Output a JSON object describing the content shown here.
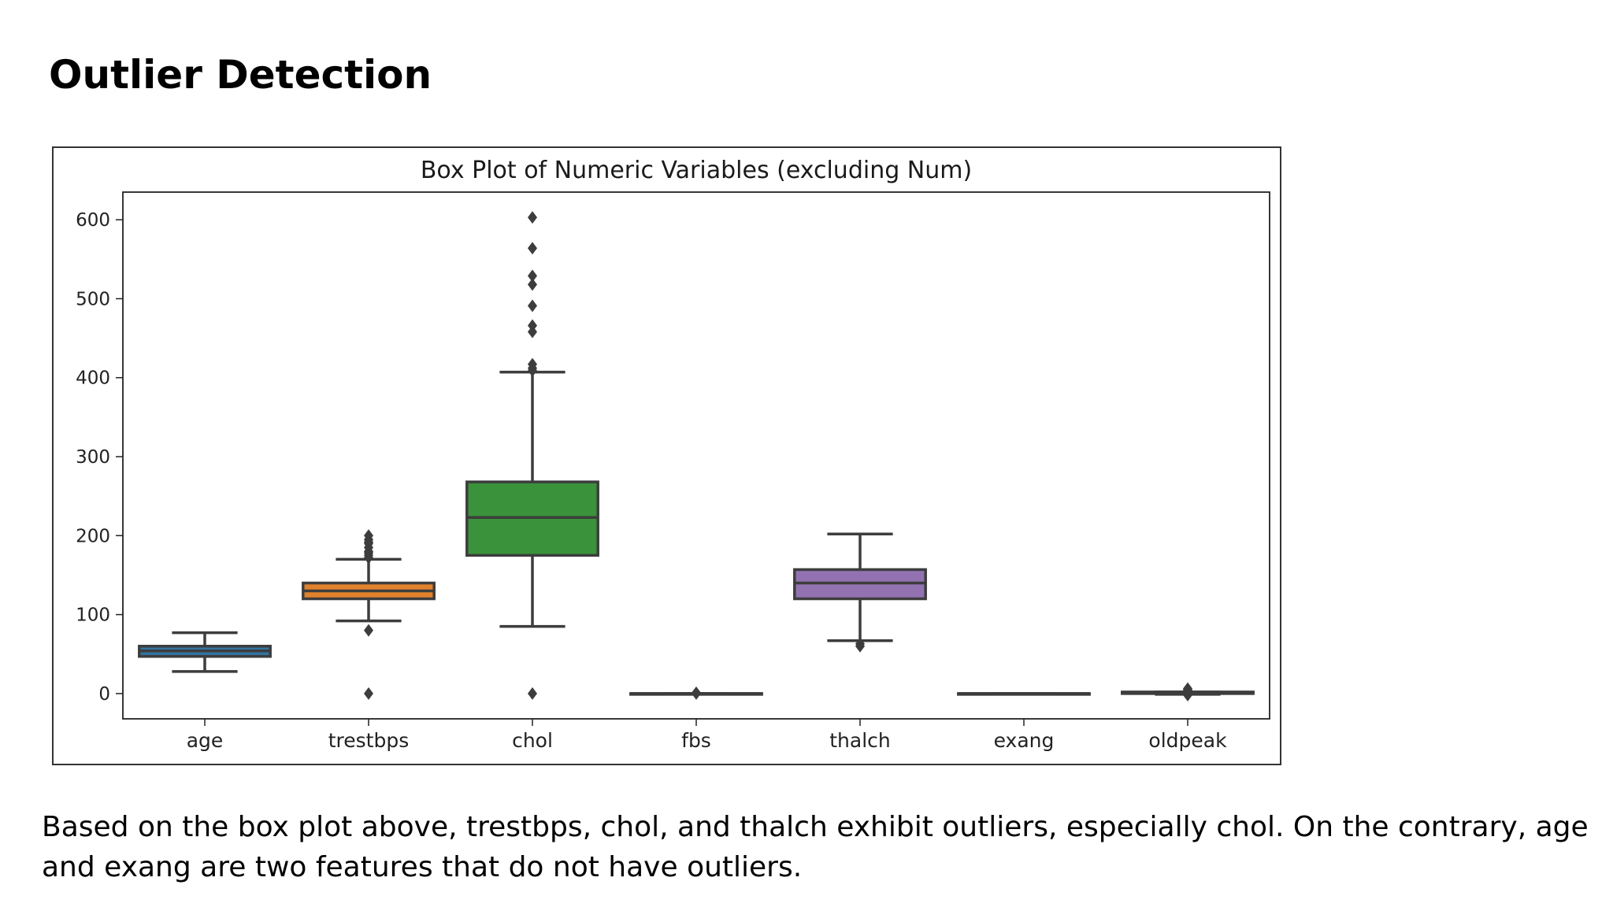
{
  "slide": {
    "title": "Outlier Detection",
    "description": "Based on the box plot above, trestbps, chol, and thalch exhibit outliers, especially chol. On the contrary, age and exang are two features that do not have outliers."
  },
  "chart_data": {
    "type": "box",
    "title": "Box Plot of Numeric Variables (excluding Num)",
    "xlabel": "",
    "ylabel": "",
    "ylim": [
      -32,
      635
    ],
    "yticks": [
      0,
      100,
      200,
      300,
      400,
      500,
      600
    ],
    "grid": false,
    "series": [
      {
        "name": "age",
        "color": "#3274a1",
        "whisker_low": 28,
        "q1": 47,
        "median": 54,
        "q3": 60,
        "whisker_high": 77,
        "outliers": []
      },
      {
        "name": "trestbps",
        "color": "#e1812c",
        "whisker_low": 92,
        "q1": 120,
        "median": 130,
        "q3": 140,
        "whisker_high": 170,
        "outliers": [
          0,
          80,
          172,
          175,
          178,
          180,
          185,
          190,
          192,
          195,
          200
        ]
      },
      {
        "name": "chol",
        "color": "#3a923a",
        "whisker_low": 85,
        "q1": 175,
        "median": 223,
        "q3": 268,
        "whisker_high": 407,
        "outliers": [
          0,
          409,
          412,
          417,
          458,
          466,
          491,
          518,
          529,
          564,
          603
        ]
      },
      {
        "name": "fbs",
        "color": "#c03d3e",
        "whisker_low": 0,
        "q1": 0,
        "median": 0,
        "q3": 0,
        "whisker_high": 0,
        "outliers": [
          0,
          1
        ]
      },
      {
        "name": "thalch",
        "color": "#9372b2",
        "whisker_low": 67,
        "q1": 120,
        "median": 140,
        "q3": 157,
        "whisker_high": 202,
        "outliers": [
          60,
          63
        ]
      },
      {
        "name": "exang",
        "color": "#845b53",
        "whisker_low": 0,
        "q1": 0,
        "median": 0,
        "q3": 0,
        "whisker_high": 0,
        "outliers": []
      },
      {
        "name": "oldpeak",
        "color": "#d684bd",
        "whisker_low": -1,
        "q1": 0,
        "median": 0.8,
        "q3": 2,
        "whisker_high": 2,
        "outliers": [
          -2,
          -1.5,
          -1,
          2.5,
          3,
          4,
          5,
          6.2
        ]
      }
    ]
  }
}
